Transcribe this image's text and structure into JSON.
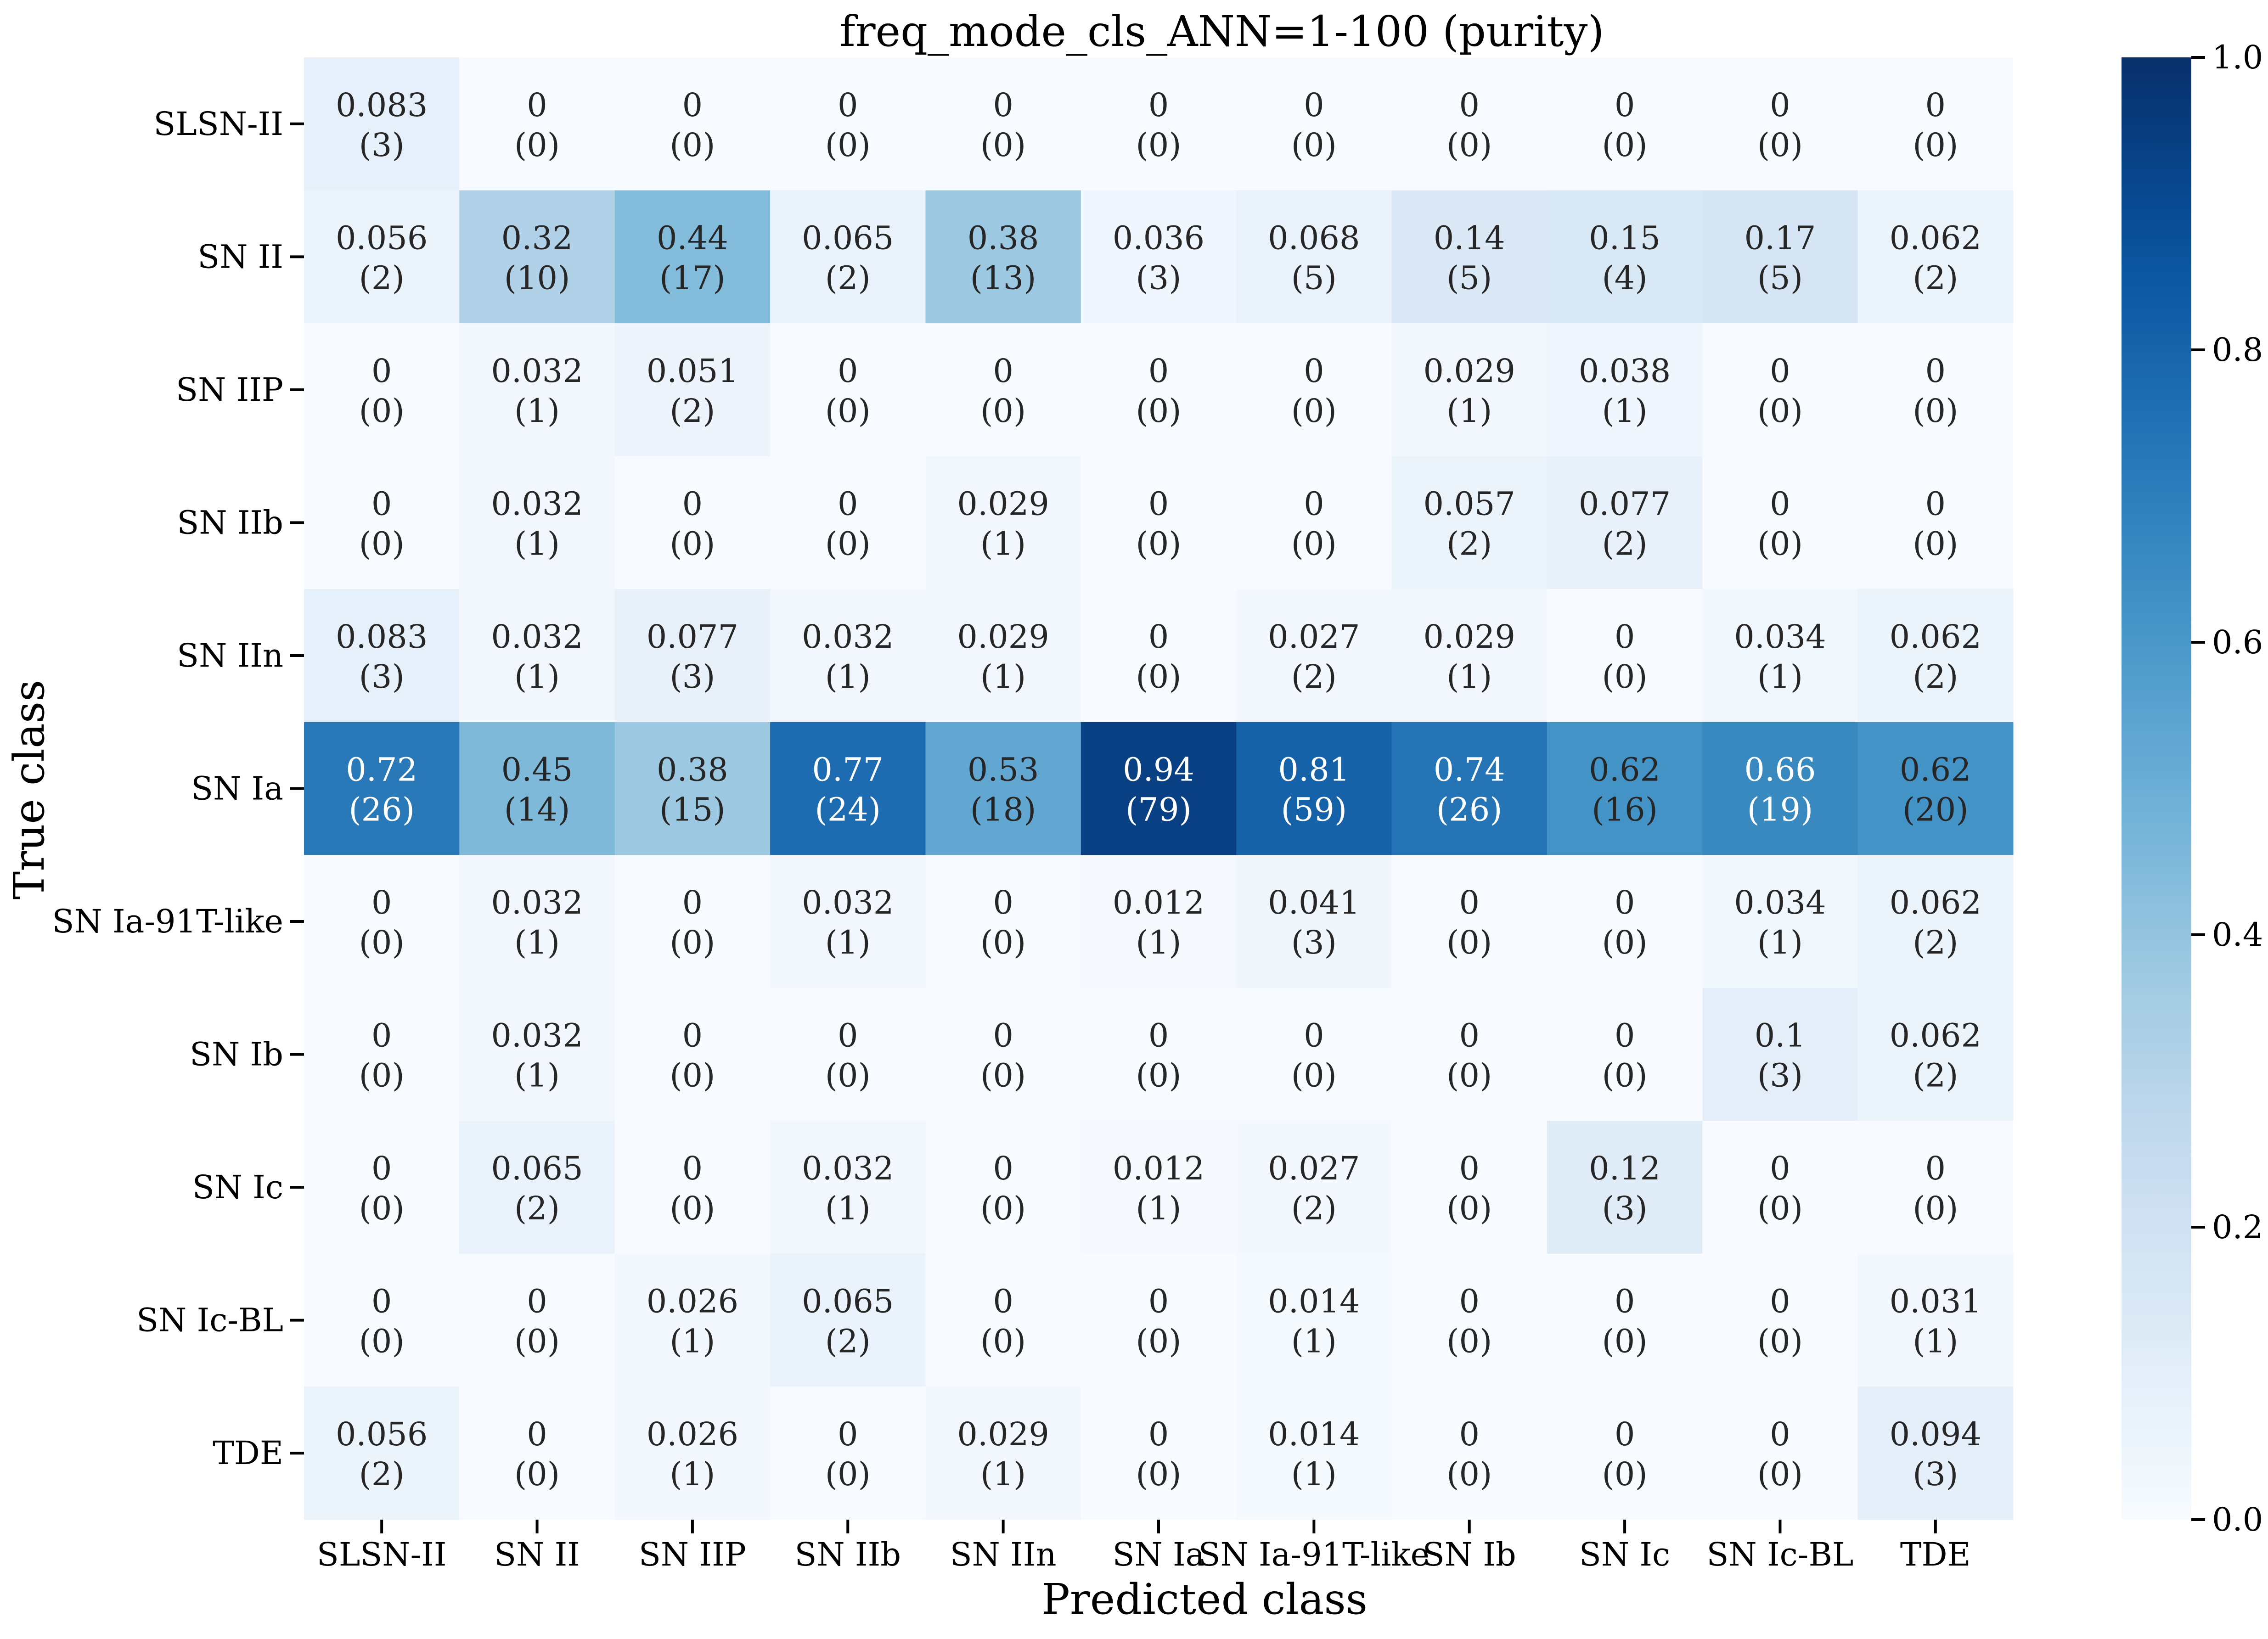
{
  "chart_data": {
    "type": "heatmap",
    "title": "freq_mode_cls_ANN=1-100 (purity)",
    "xlabel": "Predicted class",
    "ylabel": "True class",
    "x_categories": [
      "SLSN-II",
      "SN II",
      "SN IIP",
      "SN IIb",
      "SN IIn",
      "SN Ia",
      "SN Ia-91T-like",
      "SN Ib",
      "SN Ic",
      "SN Ic-BL",
      "TDE"
    ],
    "y_categories": [
      "SLSN-II",
      "SN II",
      "SN IIP",
      "SN IIb",
      "SN IIn",
      "SN Ia",
      "SN Ia-91T-like",
      "SN Ib",
      "SN Ic",
      "SN Ic-BL",
      "TDE"
    ],
    "values_text": [
      [
        "0.083",
        "0",
        "0",
        "0",
        "0",
        "0",
        "0",
        "0",
        "0",
        "0",
        "0"
      ],
      [
        "0.056",
        "0.32",
        "0.44",
        "0.065",
        "0.38",
        "0.036",
        "0.068",
        "0.14",
        "0.15",
        "0.17",
        "0.062"
      ],
      [
        "0",
        "0.032",
        "0.051",
        "0",
        "0",
        "0",
        "0",
        "0.029",
        "0.038",
        "0",
        "0"
      ],
      [
        "0",
        "0.032",
        "0",
        "0",
        "0.029",
        "0",
        "0",
        "0.057",
        "0.077",
        "0",
        "0"
      ],
      [
        "0.083",
        "0.032",
        "0.077",
        "0.032",
        "0.029",
        "0",
        "0.027",
        "0.029",
        "0",
        "0.034",
        "0.062"
      ],
      [
        "0.72",
        "0.45",
        "0.38",
        "0.77",
        "0.53",
        "0.94",
        "0.81",
        "0.74",
        "0.62",
        "0.66",
        "0.62"
      ],
      [
        "0",
        "0.032",
        "0",
        "0.032",
        "0",
        "0.012",
        "0.041",
        "0",
        "0",
        "0.034",
        "0.062"
      ],
      [
        "0",
        "0.032",
        "0",
        "0",
        "0",
        "0",
        "0",
        "0",
        "0",
        "0.1",
        "0.062"
      ],
      [
        "0",
        "0.065",
        "0",
        "0.032",
        "0",
        "0.012",
        "0.027",
        "0",
        "0.12",
        "0",
        "0"
      ],
      [
        "0",
        "0",
        "0.026",
        "0.065",
        "0",
        "0",
        "0.014",
        "0",
        "0",
        "0",
        "0.031"
      ],
      [
        "0.056",
        "0",
        "0.026",
        "0",
        "0.029",
        "0",
        "0.014",
        "0",
        "0",
        "0",
        "0.094"
      ]
    ],
    "counts": [
      [
        3,
        0,
        0,
        0,
        0,
        0,
        0,
        0,
        0,
        0,
        0
      ],
      [
        2,
        10,
        17,
        2,
        13,
        3,
        5,
        5,
        4,
        5,
        2
      ],
      [
        0,
        1,
        2,
        0,
        0,
        0,
        0,
        1,
        1,
        0,
        0
      ],
      [
        0,
        1,
        0,
        0,
        1,
        0,
        0,
        2,
        2,
        0,
        0
      ],
      [
        3,
        1,
        3,
        1,
        1,
        0,
        2,
        1,
        0,
        1,
        2
      ],
      [
        26,
        14,
        15,
        24,
        18,
        79,
        59,
        26,
        16,
        19,
        20
      ],
      [
        0,
        1,
        0,
        1,
        0,
        1,
        3,
        0,
        0,
        1,
        2
      ],
      [
        0,
        1,
        0,
        0,
        0,
        0,
        0,
        0,
        0,
        3,
        2
      ],
      [
        0,
        2,
        0,
        1,
        0,
        1,
        2,
        0,
        3,
        0,
        0
      ],
      [
        0,
        0,
        1,
        2,
        0,
        0,
        1,
        0,
        0,
        0,
        1
      ],
      [
        2,
        0,
        1,
        0,
        1,
        0,
        1,
        0,
        0,
        0,
        3
      ]
    ],
    "colorbar": {
      "colormap": "Blues",
      "range": [
        0.0,
        1.0
      ],
      "ticks": [
        "0.0",
        "0.2",
        "0.4",
        "0.6",
        "0.8",
        "1.0"
      ]
    }
  }
}
